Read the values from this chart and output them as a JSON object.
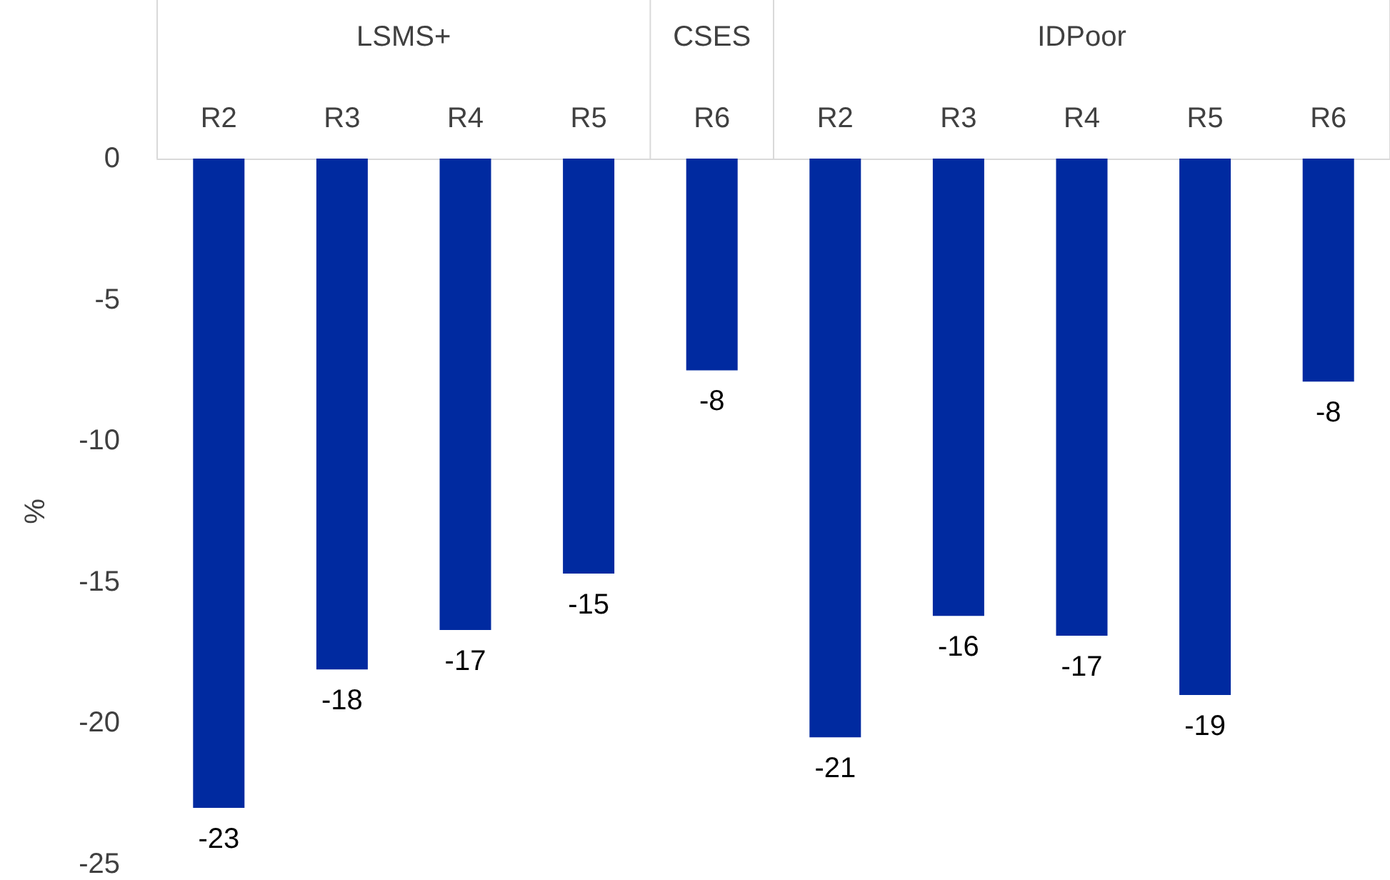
{
  "chart_data": {
    "type": "bar",
    "ylabel": "%",
    "categories": [
      "R2",
      "R3",
      "R4",
      "R5",
      "R6",
      "R2",
      "R3",
      "R4",
      "R5",
      "R6"
    ],
    "values": [
      -23.0,
      -18.1,
      -16.7,
      -14.7,
      -7.5,
      -20.5,
      -16.2,
      -16.9,
      -19.0,
      -7.9
    ],
    "value_labels": [
      "-23",
      "-18",
      "-17",
      "-15",
      "-8",
      "-21",
      "-16",
      "-17",
      "-19",
      "-8"
    ],
    "color": "#002aa0",
    "ylim": [
      -25,
      0
    ],
    "yticks": [
      -25,
      -20,
      -15,
      -10,
      -5,
      0
    ],
    "grid": false,
    "annotations": [
      "LSMS+",
      "CSES",
      "IDPoor"
    ]
  }
}
